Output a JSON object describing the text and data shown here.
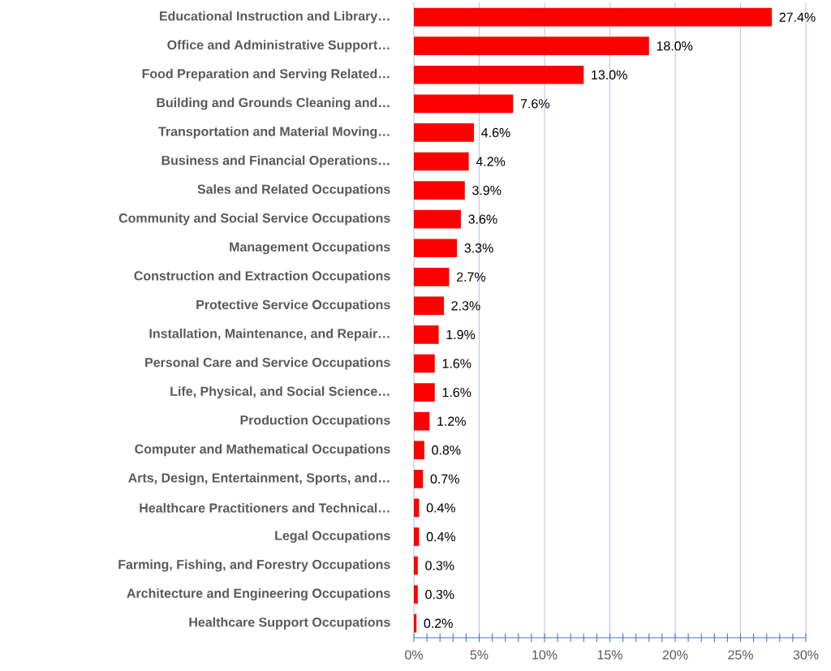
{
  "chart_data": {
    "type": "bar",
    "orientation": "horizontal",
    "color": "#ff0000",
    "categories": [
      "Educational Instruction and Library…",
      "Office and Administrative Support…",
      "Food Preparation and Serving Related…",
      "Building and Grounds Cleaning and…",
      "Transportation and Material Moving…",
      "Business and Financial Operations…",
      "Sales and Related Occupations",
      "Community and Social Service Occupations",
      "Management Occupations",
      "Construction and Extraction Occupations",
      "Protective Service Occupations",
      "Installation, Maintenance, and Repair…",
      "Personal Care and Service Occupations",
      "Life, Physical, and Social Science…",
      "Production Occupations",
      "Computer and Mathematical Occupations",
      "Arts, Design, Entertainment, Sports, and…",
      "Healthcare Practitioners and Technical…",
      "Legal Occupations",
      "Farming, Fishing, and Forestry Occupations",
      "Architecture and Engineering Occupations",
      "Healthcare Support Occupations"
    ],
    "values": [
      27.4,
      18.0,
      13.0,
      7.6,
      4.6,
      4.2,
      3.9,
      3.6,
      3.3,
      2.7,
      2.3,
      1.9,
      1.6,
      1.6,
      1.2,
      0.8,
      0.7,
      0.4,
      0.4,
      0.3,
      0.3,
      0.2
    ],
    "value_labels": [
      "27.4%",
      "18.0%",
      "13.0%",
      "7.6%",
      "4.6%",
      "4.2%",
      "3.9%",
      "3.6%",
      "3.3%",
      "2.7%",
      "2.3%",
      "1.9%",
      "1.6%",
      "1.6%",
      "1.2%",
      "0.8%",
      "0.7%",
      "0.4%",
      "0.4%",
      "0.3%",
      "0.3%",
      "0.2%"
    ],
    "xlim": [
      0,
      30
    ],
    "xticks": [
      {
        "value": 0,
        "label": "0%"
      },
      {
        "value": 5,
        "label": "5%"
      },
      {
        "value": 10,
        "label": "10%"
      },
      {
        "value": 15,
        "label": "15%"
      },
      {
        "value": 20,
        "label": "20%"
      },
      {
        "value": 25,
        "label": "25%"
      },
      {
        "value": 30,
        "label": "30%"
      }
    ],
    "grid": "x"
  }
}
